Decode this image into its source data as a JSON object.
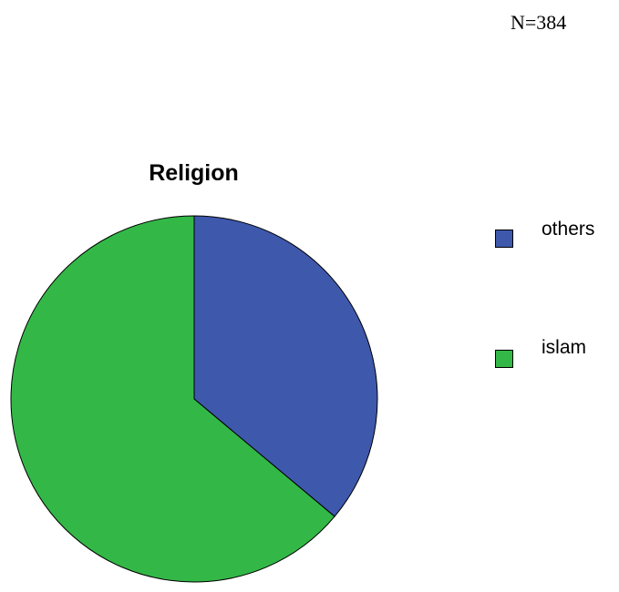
{
  "chart_data": {
    "type": "pie",
    "title": "Religion",
    "annotation": "N=384",
    "legend_position": "right",
    "series": [
      {
        "name": "Religion",
        "slices": [
          {
            "label": "others",
            "value": 36.1,
            "color": "#3e58ac"
          },
          {
            "label": "islam",
            "value": 63.9,
            "color": "#33b847"
          }
        ]
      }
    ]
  }
}
